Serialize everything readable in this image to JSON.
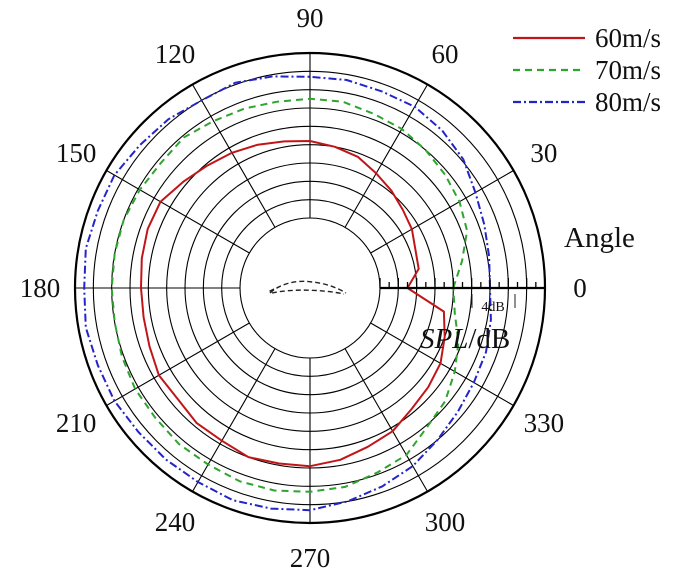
{
  "chart_data": {
    "type": "polar-line",
    "angle_unit": "degrees",
    "angle_tick_labels": [
      "0",
      "30",
      "60",
      "90",
      "120",
      "150",
      "180",
      "210",
      "240",
      "270",
      "300",
      "330"
    ],
    "angle_axis_title": "Angle",
    "radial_axis_title_italic": "SPL",
    "radial_axis_title_rest": "/dB",
    "radial_scale_note": "4dB",
    "radial_min": 0,
    "radial_max": 9,
    "grid": true,
    "legend_position": "top-right",
    "series": [
      {
        "name": "60m/s",
        "color": "#c0161a",
        "style": "solid",
        "angles": [
          0,
          10,
          20,
          30,
          40,
          50,
          60,
          70,
          80,
          90,
          100,
          110,
          120,
          130,
          140,
          150,
          160,
          170,
          180,
          190,
          200,
          210,
          220,
          230,
          240,
          250,
          260,
          270,
          280,
          290,
          300,
          310,
          320,
          330,
          340,
          350,
          360
        ],
        "values": [
          1.5,
          2.2,
          2.3,
          2.6,
          2.8,
          3.1,
          3.4,
          3.8,
          4.0,
          4.2,
          4.3,
          4.5,
          4.7,
          4.9,
          5.2,
          5.6,
          5.6,
          5.5,
          5.4,
          5.4,
          5.5,
          5.7,
          5.6,
          5.8,
          5.8,
          6.0,
          5.9,
          5.9,
          5.7,
          5.4,
          5.2,
          4.8,
          4.6,
          4.4,
          4.0,
          3.6,
          1.5
        ]
      },
      {
        "name": "70m/s",
        "color": "#2ea52e",
        "style": "dashed",
        "angles": [
          0,
          10,
          20,
          30,
          40,
          50,
          60,
          70,
          80,
          90,
          100,
          110,
          120,
          130,
          140,
          150,
          160,
          170,
          180,
          190,
          200,
          210,
          220,
          230,
          240,
          250,
          260,
          270,
          280,
          290,
          300,
          310,
          320,
          330,
          340,
          350,
          360
        ],
        "values": [
          4.0,
          4.6,
          5.3,
          5.6,
          5.8,
          6.0,
          6.2,
          6.3,
          6.5,
          6.5,
          6.5,
          6.6,
          6.7,
          6.9,
          6.8,
          6.9,
          7.0,
          7.0,
          7.0,
          7.0,
          7.1,
          7.2,
          7.2,
          7.3,
          7.3,
          7.4,
          7.4,
          7.3,
          7.2,
          6.9,
          6.7,
          6.1,
          5.8,
          5.3,
          4.8,
          4.2,
          4.0
        ]
      },
      {
        "name": "80m/s",
        "color": "#2424c8",
        "style": "dash-dot",
        "angles": [
          0,
          10,
          20,
          30,
          40,
          50,
          60,
          70,
          80,
          90,
          100,
          110,
          120,
          130,
          140,
          150,
          160,
          170,
          180,
          190,
          200,
          210,
          220,
          230,
          240,
          250,
          260,
          270,
          280,
          290,
          300,
          310,
          320,
          330,
          340,
          350,
          360
        ],
        "values": [
          6.0,
          6.1,
          6.3,
          6.6,
          7.1,
          7.4,
          7.6,
          7.6,
          7.7,
          7.7,
          7.9,
          8.1,
          8.0,
          8.2,
          8.3,
          8.5,
          8.5,
          8.6,
          8.5,
          8.6,
          8.5,
          8.5,
          8.4,
          8.4,
          8.4,
          8.5,
          8.4,
          8.3,
          8.0,
          7.7,
          7.4,
          7.0,
          6.7,
          6.5,
          6.4,
          6.2,
          6.0
        ]
      }
    ]
  }
}
